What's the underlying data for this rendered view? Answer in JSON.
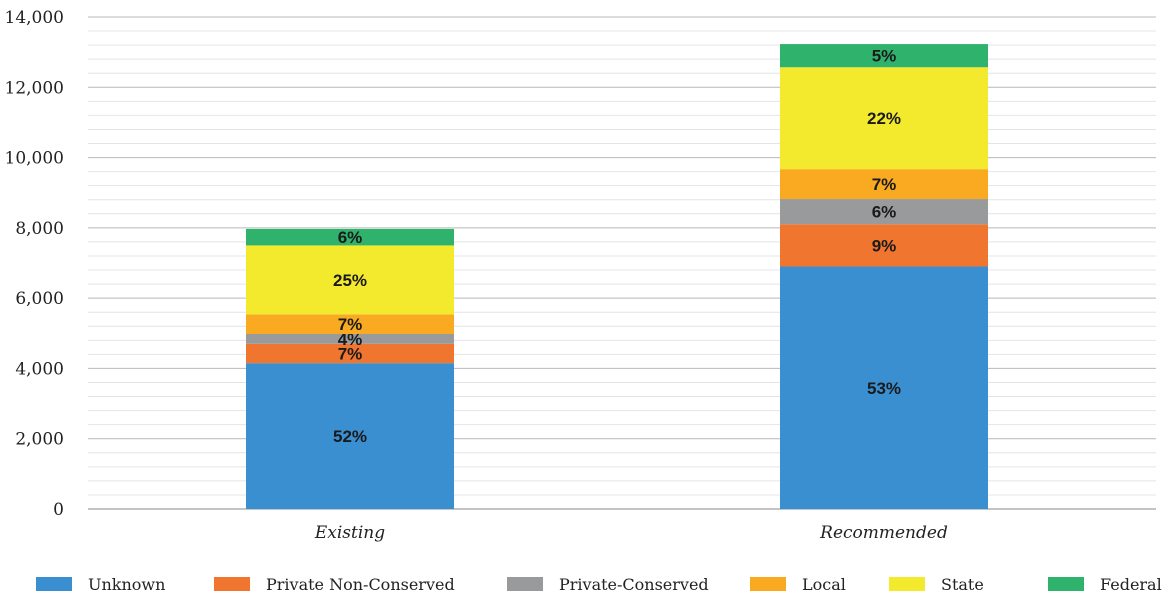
{
  "chart_data": {
    "type": "bar",
    "stacked": true,
    "categories": [
      "Existing",
      "Recommended"
    ],
    "ylim": [
      0,
      14000
    ],
    "yticks": [
      "0",
      "2,000",
      "4,000",
      "6,000",
      "8,000",
      "10,000",
      "12,000",
      "14,000"
    ],
    "ytick_values": [
      0,
      2000,
      4000,
      6000,
      8000,
      10000,
      12000,
      14000
    ],
    "grid": true,
    "minor_grid_step": 400,
    "legend_position": "bottom",
    "xlabel": "",
    "ylabel": "",
    "title": "",
    "series": [
      {
        "name": "Unknown",
        "color": "#3a8fd1",
        "values": [
          4150,
          6900
        ],
        "labels": [
          "52%",
          "53%"
        ]
      },
      {
        "name": "Private Non-Conserved",
        "color": "#f07630",
        "values": [
          550,
          1200
        ],
        "labels": [
          "7%",
          "9%"
        ]
      },
      {
        "name": "Private-Conserved",
        "color": "#999a9c",
        "values": [
          280,
          720
        ],
        "labels": [
          "4%",
          "6%"
        ]
      },
      {
        "name": "Local",
        "color": "#f9aa20",
        "values": [
          560,
          850
        ],
        "labels": [
          "7%",
          "7%"
        ]
      },
      {
        "name": "State",
        "color": "#f4ea2d",
        "values": [
          1960,
          2900
        ],
        "labels": [
          "25%",
          "22%"
        ]
      },
      {
        "name": "Federal",
        "color": "#2fb36c",
        "values": [
          470,
          660
        ],
        "labels": [
          "6%",
          "5%"
        ]
      }
    ]
  }
}
